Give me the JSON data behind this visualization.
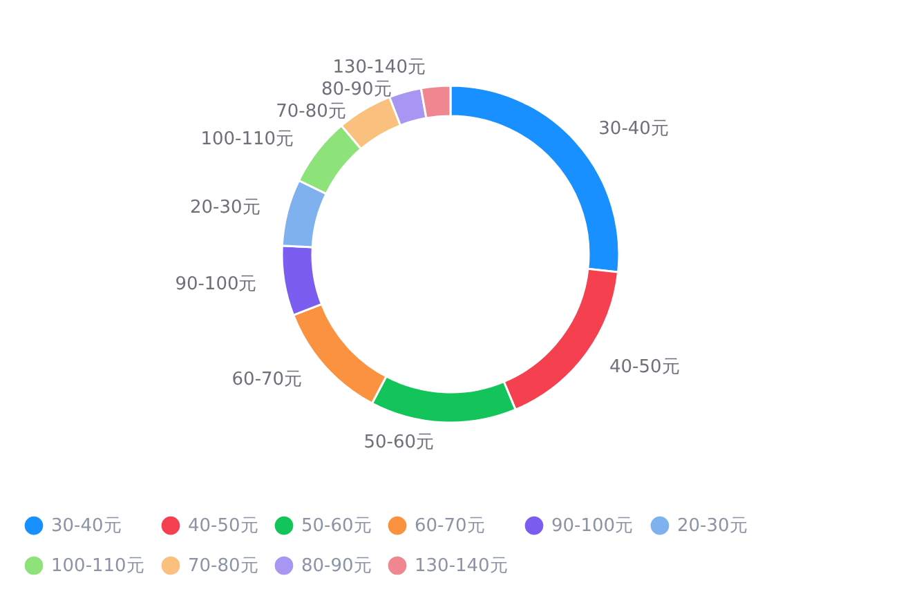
{
  "chart_data": {
    "type": "donut",
    "categories": [
      "30-40元",
      "40-50元",
      "50-60元",
      "60-70元",
      "90-100元",
      "20-30元",
      "100-110元",
      "70-80元",
      "80-90元",
      "130-140元"
    ],
    "values": [
      26.7,
      17,
      14,
      11.4,
      6.7,
      6.4,
      6.6,
      5.3,
      3.1,
      2.8
    ],
    "colors": [
      "#1890ff",
      "#f5414f",
      "#13c45a",
      "#fa9240",
      "#7b5ef0",
      "#7fb1ef",
      "#8de27a",
      "#f9c07e",
      "#a897f2",
      "#f08790"
    ],
    "legend": "bottom"
  }
}
